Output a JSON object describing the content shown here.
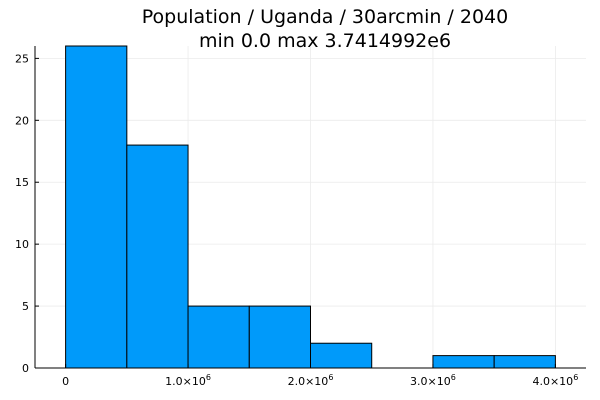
{
  "chart_data": {
    "type": "bar",
    "title": "Population / Uganda / 30arcmin / 2040",
    "subtitle": "min 0.0  max 3.7414992e6",
    "bins": [
      {
        "start": 0,
        "end": 500000,
        "count": 26
      },
      {
        "start": 500000,
        "end": 1000000,
        "count": 18
      },
      {
        "start": 1000000,
        "end": 1500000,
        "count": 5
      },
      {
        "start": 1500000,
        "end": 2000000,
        "count": 5
      },
      {
        "start": 2000000,
        "end": 2500000,
        "count": 2
      },
      {
        "start": 2500000,
        "end": 3000000,
        "count": 0
      },
      {
        "start": 3000000,
        "end": 3500000,
        "count": 1
      },
      {
        "start": 3500000,
        "end": 4000000,
        "count": 1
      }
    ],
    "xlim": [
      -250000,
      4250000
    ],
    "ylim": [
      0,
      26
    ],
    "x_ticks": [
      {
        "value": 0,
        "label": "0"
      },
      {
        "value": 1000000,
        "label": "1.0×10",
        "sup": "6"
      },
      {
        "value": 2000000,
        "label": "2.0×10",
        "sup": "6"
      },
      {
        "value": 3000000,
        "label": "3.0×10",
        "sup": "6"
      },
      {
        "value": 4000000,
        "label": "4.0×10",
        "sup": "6"
      }
    ],
    "y_ticks": [
      {
        "value": 0,
        "label": "0"
      },
      {
        "value": 5,
        "label": "5"
      },
      {
        "value": 10,
        "label": "10"
      },
      {
        "value": 15,
        "label": "15"
      },
      {
        "value": 20,
        "label": "20"
      },
      {
        "value": 25,
        "label": "25"
      }
    ],
    "grid": true,
    "legend": "none",
    "bar_color": "#009AFA",
    "bar_edge_color": "#000000",
    "grid_color": "#EBEBEB"
  }
}
